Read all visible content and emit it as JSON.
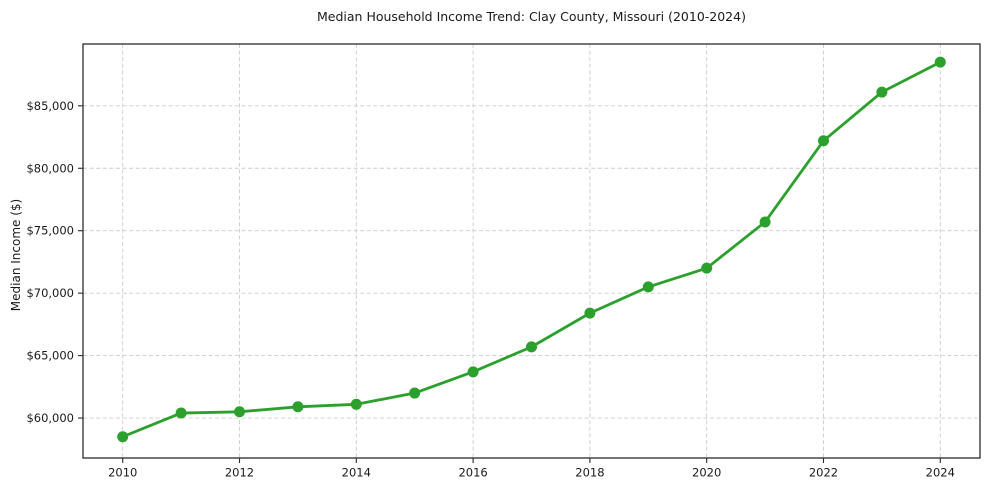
{
  "chart_data": {
    "type": "line",
    "title": "Median Household Income Trend: Clay County, Missouri (2010-2024)",
    "ylabel": "Median Income ($)",
    "xlabel": "",
    "series_name": "Median Household Income",
    "x": [
      2010,
      2011,
      2012,
      2013,
      2014,
      2015,
      2016,
      2017,
      2018,
      2019,
      2020,
      2021,
      2022,
      2023,
      2024
    ],
    "values": [
      58500,
      60400,
      60500,
      60900,
      61100,
      62000,
      63700,
      65700,
      68400,
      70500,
      72000,
      75700,
      82200,
      86100,
      88500
    ],
    "xlim": [
      2009.32,
      2024.68
    ],
    "ylim": [
      56800,
      89950
    ],
    "xticks": [
      2010,
      2012,
      2014,
      2016,
      2018,
      2020,
      2022,
      2024
    ],
    "xtick_labels": [
      "2010",
      "2012",
      "2014",
      "2016",
      "2018",
      "2020",
      "2022",
      "2024"
    ],
    "yticks": [
      60000,
      65000,
      70000,
      75000,
      80000,
      85000
    ],
    "ytick_labels": [
      "$60,000",
      "$65,000",
      "$70,000",
      "$75,000",
      "$80,000",
      "$85,000"
    ],
    "grid": true,
    "grid_style": "dashed",
    "legend": false,
    "marker": "circle",
    "line_color": "#2ca02c",
    "grid_color": "#cccccc",
    "axis_color": "#2b2b2b",
    "text_color": "#1a1a1a",
    "background_color": "#ffffff"
  }
}
